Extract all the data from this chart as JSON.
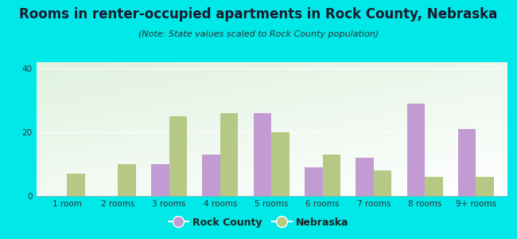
{
  "categories": [
    "1 room",
    "2 rooms",
    "3 rooms",
    "4 rooms",
    "5 rooms",
    "6 rooms",
    "7 rooms",
    "8 rooms",
    "9+ rooms"
  ],
  "rock_county": [
    0,
    0,
    10,
    13,
    26,
    9,
    12,
    29,
    21
  ],
  "nebraska": [
    7,
    10,
    25,
    26,
    20,
    13,
    8,
    6,
    6
  ],
  "rock_county_color": "#c39bd3",
  "nebraska_color": "#b5c985",
  "title": "Rooms in renter-occupied apartments in Rock County, Nebraska",
  "subtitle": "(Note: State values scaled to Rock County population)",
  "legend_rock_county": "Rock County",
  "legend_nebraska": "Nebraska",
  "ylim": [
    0,
    42
  ],
  "yticks": [
    0,
    20,
    40
  ],
  "bar_width": 0.35,
  "background_color": "#00e8e8",
  "title_fontsize": 12,
  "subtitle_fontsize": 8,
  "axis_fontsize": 7.5,
  "legend_fontsize": 9
}
